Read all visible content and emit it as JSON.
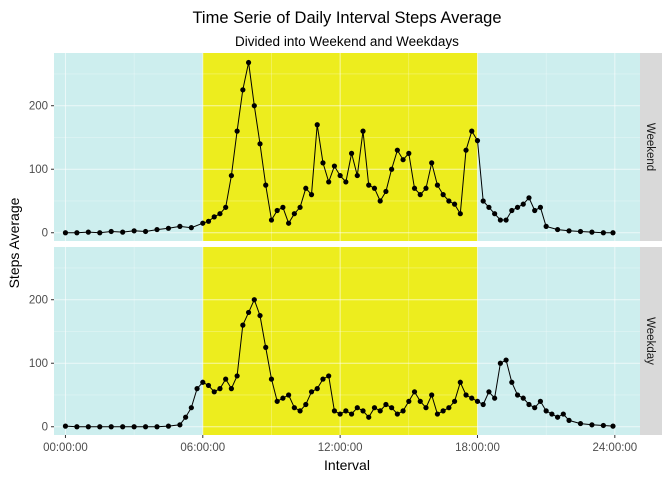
{
  "colors": {
    "off_hours": "#cdeeee",
    "day_hours": "#eded1e",
    "grid": "#ffffff",
    "strip": "#d9d9d9",
    "line": "#000000",
    "points": "#000000"
  },
  "chart_data": {
    "type": "line",
    "title": "Time Serie of Daily Interval Steps Average",
    "subtitle": "Divided into Weekend and Weekdays",
    "xlabel": "Interval",
    "ylabel": "Steps Average",
    "x_ticks": [
      "00:00:00",
      "06:00:00",
      "12:00:00",
      "18:00:00",
      "24:00:00"
    ],
    "y_ticks": [
      "0",
      "100",
      "200"
    ],
    "xlim_hours": [
      -0.5,
      25.1
    ],
    "ylim": [
      -13,
      283
    ],
    "highlight_band_hours": [
      6,
      18
    ],
    "grid": true,
    "facets": [
      {
        "name": "Weekend",
        "x_hours": [
          0,
          0.5,
          1,
          1.5,
          2,
          2.5,
          3,
          3.5,
          4,
          4.5,
          5,
          5.5,
          6,
          6.25,
          6.5,
          6.75,
          7,
          7.25,
          7.5,
          7.75,
          8,
          8.25,
          8.5,
          8.75,
          9,
          9.25,
          9.5,
          9.75,
          10,
          10.25,
          10.5,
          10.75,
          11,
          11.25,
          11.5,
          11.75,
          12,
          12.25,
          12.5,
          12.75,
          13,
          13.25,
          13.5,
          13.75,
          14,
          14.25,
          14.5,
          14.75,
          15,
          15.25,
          15.5,
          15.75,
          16,
          16.25,
          16.5,
          16.75,
          17,
          17.25,
          17.5,
          17.75,
          18,
          18.25,
          18.5,
          18.75,
          19,
          19.25,
          19.5,
          19.75,
          20,
          20.25,
          20.5,
          20.75,
          21,
          21.5,
          22,
          22.5,
          23,
          23.5,
          23.92
        ],
        "values": [
          0,
          0,
          1,
          0,
          2,
          1,
          3,
          2,
          5,
          7,
          10,
          8,
          15,
          18,
          25,
          30,
          40,
          90,
          160,
          225,
          268,
          200,
          140,
          75,
          20,
          35,
          40,
          15,
          30,
          40,
          70,
          60,
          170,
          110,
          80,
          105,
          90,
          80,
          125,
          90,
          160,
          75,
          70,
          50,
          65,
          100,
          130,
          115,
          125,
          70,
          60,
          70,
          110,
          75,
          60,
          50,
          45,
          30,
          130,
          160,
          145,
          50,
          40,
          30,
          20,
          20,
          35,
          40,
          45,
          55,
          35,
          40,
          10,
          5,
          3,
          2,
          1,
          0,
          0
        ]
      },
      {
        "name": "Weekday",
        "x_hours": [
          0,
          0.5,
          1,
          1.5,
          2,
          2.5,
          3,
          3.5,
          4,
          4.5,
          5,
          5.25,
          5.5,
          5.75,
          6,
          6.25,
          6.5,
          6.75,
          7,
          7.25,
          7.5,
          7.75,
          8,
          8.25,
          8.5,
          8.75,
          9,
          9.25,
          9.5,
          9.75,
          10,
          10.25,
          10.5,
          10.75,
          11,
          11.25,
          11.5,
          11.75,
          12,
          12.25,
          12.5,
          12.75,
          13,
          13.25,
          13.5,
          13.75,
          14,
          14.25,
          14.5,
          14.75,
          15,
          15.25,
          15.5,
          15.75,
          16,
          16.25,
          16.5,
          16.75,
          17,
          17.25,
          17.5,
          17.75,
          18,
          18.25,
          18.5,
          18.75,
          19,
          19.25,
          19.5,
          19.75,
          20,
          20.25,
          20.5,
          20.75,
          21,
          21.25,
          21.5,
          21.75,
          22,
          22.5,
          23,
          23.5,
          23.92
        ],
        "values": [
          1,
          0,
          0,
          0,
          0,
          0,
          0,
          0,
          0,
          1,
          3,
          15,
          30,
          60,
          70,
          65,
          55,
          60,
          75,
          60,
          80,
          160,
          180,
          200,
          175,
          125,
          75,
          40,
          45,
          50,
          30,
          25,
          35,
          55,
          60,
          75,
          80,
          25,
          20,
          25,
          20,
          30,
          25,
          15,
          30,
          25,
          35,
          30,
          20,
          25,
          40,
          55,
          40,
          30,
          50,
          20,
          25,
          30,
          40,
          70,
          50,
          45,
          40,
          35,
          55,
          45,
          100,
          105,
          70,
          50,
          45,
          35,
          30,
          40,
          25,
          20,
          15,
          20,
          10,
          5,
          3,
          2,
          1
        ]
      }
    ]
  }
}
